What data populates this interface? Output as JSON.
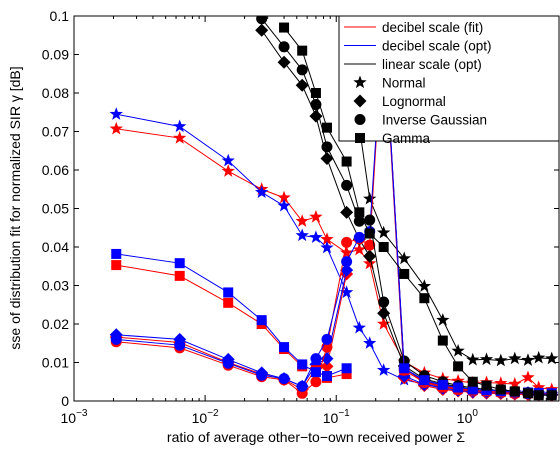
{
  "chart_data": {
    "type": "line",
    "xlabel": "ratio of average other−to−own received power Σ",
    "ylabel": "sse of distribution fit for normalized SIR γ [dB]",
    "xscale": "log",
    "xlim": [
      0.001,
      5
    ],
    "ylim": [
      0,
      0.1
    ],
    "x_ticks": [
      {
        "v": 0.001,
        "b": "10",
        "e": "−3"
      },
      {
        "v": 0.01,
        "b": "10",
        "e": "−2"
      },
      {
        "v": 0.1,
        "b": "10",
        "e": "−1"
      },
      {
        "v": 1,
        "b": "10",
        "e": "0"
      }
    ],
    "y_ticks": [
      0,
      0.01,
      0.02,
      0.03,
      0.04,
      0.05,
      0.06,
      0.07,
      0.08,
      0.09,
      0.1
    ],
    "y_tick_labels": [
      "0",
      "0.01",
      "0.02",
      "0.03",
      "0.04",
      "0.05",
      "0.06",
      "0.07",
      "0.08",
      "0.09",
      "0.1"
    ],
    "grid": false,
    "legend_position": "top-right",
    "legend_lines": [
      {
        "label": "decibel scale (fit)",
        "color": "#ff0000"
      },
      {
        "label": "decibel scale (opt)",
        "color": "#0000ff"
      },
      {
        "label": "linear scale (opt)",
        "color": "#000000"
      }
    ],
    "legend_markers": [
      {
        "label": "Normal",
        "marker": "star"
      },
      {
        "label": "Lognormal",
        "marker": "diamond"
      },
      {
        "label": "Inverse Gaussian",
        "marker": "circle"
      },
      {
        "label": "Gamma",
        "marker": "square"
      }
    ],
    "x": [
      0.0021,
      0.0064,
      0.015,
      0.027,
      0.04,
      0.055,
      0.07,
      0.085,
      0.12,
      0.15,
      0.18,
      0.23,
      0.33,
      0.47,
      0.65,
      0.85,
      1.1,
      1.4,
      1.8,
      2.3,
      2.9,
      3.5,
      4.4
    ],
    "series": [
      {
        "color": "#ff0000",
        "marker": "star",
        "values": [
          0.0707,
          0.0683,
          0.0597,
          0.055,
          0.0528,
          0.0467,
          0.0478,
          0.042,
          0.0385,
          0.0393,
          0.0357,
          0.02,
          0.0102,
          0.0073,
          0.0058,
          0.0052,
          0.0047,
          0.0048,
          0.0046,
          0.0044,
          0.0061,
          0.0035,
          0.003
        ]
      },
      {
        "color": "#0000ff",
        "marker": "star",
        "values": [
          0.0745,
          0.0713,
          0.0624,
          0.0542,
          0.0507,
          0.043,
          0.0425,
          0.0398,
          0.0282,
          0.019,
          0.015,
          0.008,
          0.0055,
          0.0044,
          0.0035,
          0.003,
          0.0028,
          0.0026,
          0.0024,
          0.0022,
          0.0021,
          0.0019,
          0.0018
        ]
      },
      {
        "color": "#000000",
        "marker": "star",
        "values": [
          null,
          null,
          null,
          null,
          null,
          null,
          null,
          null,
          0.0843,
          0.0712,
          0.0525,
          0.0437,
          0.037,
          0.0298,
          0.021,
          0.013,
          0.0107,
          0.0108,
          0.0105,
          0.011,
          0.0106,
          0.0112,
          0.011
        ]
      },
      {
        "color": "#ff0000",
        "marker": "diamond",
        "values": [
          0.0166,
          0.0152,
          0.01,
          0.007,
          0.0056,
          0.003,
          0.0085,
          0.009,
          0.033,
          null,
          null,
          0.098,
          0.006,
          0.004,
          0.003,
          0.0026,
          0.0022,
          0.002,
          0.0019,
          0.0018,
          0.0017,
          0.0017,
          0.0016
        ]
      },
      {
        "color": "#0000ff",
        "marker": "diamond",
        "values": [
          0.0172,
          0.016,
          0.0108,
          0.0073,
          0.0058,
          0.0038,
          0.0095,
          0.011,
          0.034,
          null,
          null,
          0.099,
          0.0065,
          0.0043,
          0.0033,
          0.0028,
          0.0024,
          0.0022,
          0.0021,
          0.002,
          0.0019,
          0.0018,
          0.0017
        ]
      },
      {
        "color": "#000000",
        "marker": "diamond",
        "values": [
          null,
          null,
          null,
          0.0963,
          0.088,
          0.082,
          0.074,
          0.063,
          0.049,
          0.042,
          0.0376,
          0.0228,
          0.0091,
          0.0057,
          0.0045,
          0.0037,
          0.003,
          0.0027,
          0.0025,
          0.0022,
          0.002,
          0.0018,
          0.0016
        ]
      },
      {
        "color": "#ff0000",
        "marker": "circle",
        "values": [
          0.0154,
          0.0138,
          0.0093,
          0.0063,
          0.0055,
          0.002,
          0.005,
          0.014,
          0.0412,
          0.0421,
          0.0405,
          0.099,
          0.008,
          0.0048,
          0.0036,
          0.003,
          0.0026,
          0.0023,
          0.0021,
          0.0019,
          0.0018,
          0.0017,
          0.0016
        ]
      },
      {
        "color": "#0000ff",
        "marker": "circle",
        "values": [
          0.016,
          0.0145,
          0.0098,
          0.0067,
          0.0058,
          0.0038,
          0.011,
          0.016,
          0.0362,
          0.0425,
          0.044,
          0.0995,
          0.0085,
          0.0051,
          0.004,
          0.0033,
          0.0028,
          0.0025,
          0.0023,
          0.0021,
          0.0019,
          0.0018,
          0.0017
        ]
      },
      {
        "color": "#000000",
        "marker": "circle",
        "values": [
          null,
          null,
          null,
          0.0993,
          0.092,
          0.086,
          0.077,
          0.066,
          0.056,
          0.0467,
          0.047,
          0.0257,
          0.0104,
          0.0066,
          0.005,
          0.004,
          0.0034,
          0.003,
          0.0027,
          0.0024,
          0.0022,
          0.002,
          0.0018
        ]
      },
      {
        "color": "#ff0000",
        "marker": "square",
        "values": [
          0.0353,
          0.0325,
          0.0255,
          0.02,
          0.0135,
          0.009,
          0.008,
          0.006,
          0.007,
          null,
          null,
          0.099,
          0.008,
          0.005,
          0.0038,
          0.0032,
          0.0028,
          0.0026,
          0.0024,
          0.0022,
          0.0021,
          0.002,
          0.0019
        ]
      },
      {
        "color": "#0000ff",
        "marker": "square",
        "values": [
          0.0382,
          0.0358,
          0.0282,
          0.021,
          0.014,
          0.0095,
          0.0075,
          0.0065,
          0.0085,
          null,
          null,
          0.0995,
          0.0085,
          0.0054,
          0.0042,
          0.0035,
          0.003,
          0.0028,
          0.0026,
          0.0024,
          0.0022,
          0.0021,
          0.002
        ]
      },
      {
        "color": "#000000",
        "marker": "square",
        "values": [
          null,
          null,
          null,
          null,
          0.097,
          0.091,
          0.08,
          0.071,
          0.0622,
          0.049,
          0.0435,
          0.04,
          0.033,
          0.0267,
          0.0157,
          0.009,
          0.005,
          0.004,
          0.003,
          0.0025,
          0.002,
          0.0015,
          0.0015
        ]
      }
    ]
  }
}
